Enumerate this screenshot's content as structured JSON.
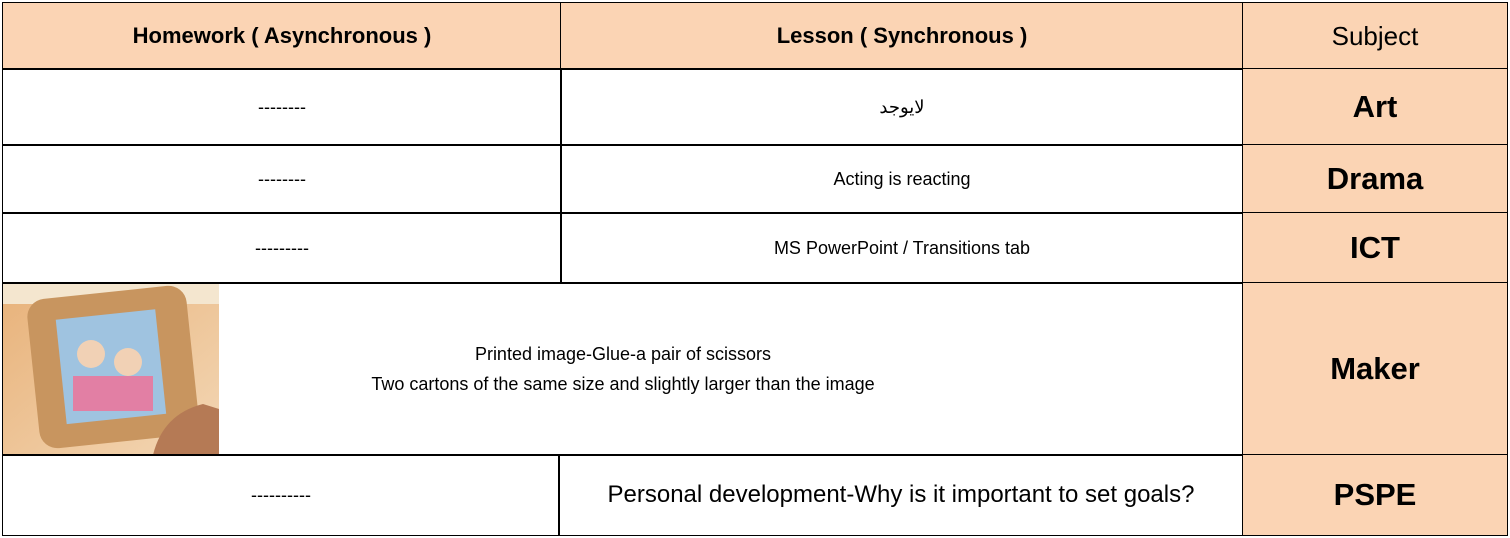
{
  "header": {
    "homework": "Homework (   Asynchronous )",
    "lesson": "Lesson ( Synchronous )",
    "subject": "Subject"
  },
  "rows": [
    {
      "subject": "Art",
      "lesson": "لايوجد",
      "homework": "--------"
    },
    {
      "subject": "Drama",
      "lesson": "Acting is reacting",
      "homework": "--------"
    },
    {
      "subject": "ICT",
      "lesson": "MS PowerPoint / Transitions tab",
      "homework": "---------"
    },
    {
      "subject": "Maker",
      "lesson_lines": [
        "Printed image-Glue-a pair of scissors",
        "Two cartons of the same size and slightly larger than the image"
      ]
    },
    {
      "subject": "PSPE",
      "lesson": "Personal development-Why is it important to set goals?",
      "homework": "----------"
    }
  ]
}
